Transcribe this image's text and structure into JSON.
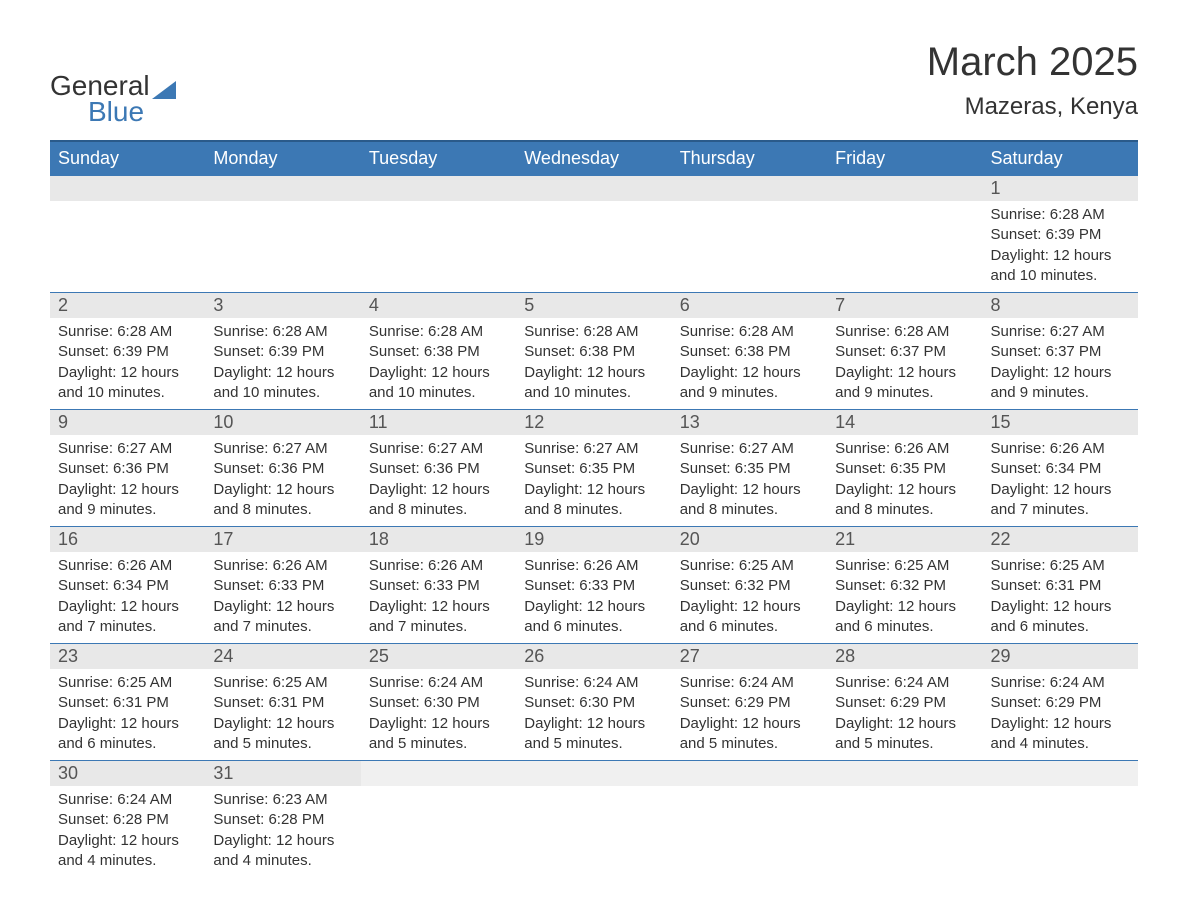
{
  "logo": {
    "text_general": "General",
    "text_blue": "Blue",
    "triangle_color": "#3c78b4"
  },
  "title": "March 2025",
  "location": "Mazeras, Kenya",
  "colors": {
    "header_bg": "#3c78b4",
    "header_border_top": "#2a5a8a",
    "header_text": "#ffffff",
    "daynum_bg": "#e8e8e8",
    "cell_border": "#3c78b4",
    "body_text": "#333333",
    "daynum_text": "#555555",
    "page_bg": "#ffffff"
  },
  "typography": {
    "title_fontsize": 40,
    "location_fontsize": 24,
    "dayheader_fontsize": 18,
    "daynum_fontsize": 18,
    "dayinfo_fontsize": 15,
    "logo_fontsize": 28
  },
  "day_headers": [
    "Sunday",
    "Monday",
    "Tuesday",
    "Wednesday",
    "Thursday",
    "Friday",
    "Saturday"
  ],
  "weeks": [
    [
      null,
      null,
      null,
      null,
      null,
      null,
      {
        "n": "1",
        "sunrise": "Sunrise: 6:28 AM",
        "sunset": "Sunset: 6:39 PM",
        "daylight": "Daylight: 12 hours and 10 minutes."
      }
    ],
    [
      {
        "n": "2",
        "sunrise": "Sunrise: 6:28 AM",
        "sunset": "Sunset: 6:39 PM",
        "daylight": "Daylight: 12 hours and 10 minutes."
      },
      {
        "n": "3",
        "sunrise": "Sunrise: 6:28 AM",
        "sunset": "Sunset: 6:39 PM",
        "daylight": "Daylight: 12 hours and 10 minutes."
      },
      {
        "n": "4",
        "sunrise": "Sunrise: 6:28 AM",
        "sunset": "Sunset: 6:38 PM",
        "daylight": "Daylight: 12 hours and 10 minutes."
      },
      {
        "n": "5",
        "sunrise": "Sunrise: 6:28 AM",
        "sunset": "Sunset: 6:38 PM",
        "daylight": "Daylight: 12 hours and 10 minutes."
      },
      {
        "n": "6",
        "sunrise": "Sunrise: 6:28 AM",
        "sunset": "Sunset: 6:38 PM",
        "daylight": "Daylight: 12 hours and 9 minutes."
      },
      {
        "n": "7",
        "sunrise": "Sunrise: 6:28 AM",
        "sunset": "Sunset: 6:37 PM",
        "daylight": "Daylight: 12 hours and 9 minutes."
      },
      {
        "n": "8",
        "sunrise": "Sunrise: 6:27 AM",
        "sunset": "Sunset: 6:37 PM",
        "daylight": "Daylight: 12 hours and 9 minutes."
      }
    ],
    [
      {
        "n": "9",
        "sunrise": "Sunrise: 6:27 AM",
        "sunset": "Sunset: 6:36 PM",
        "daylight": "Daylight: 12 hours and 9 minutes."
      },
      {
        "n": "10",
        "sunrise": "Sunrise: 6:27 AM",
        "sunset": "Sunset: 6:36 PM",
        "daylight": "Daylight: 12 hours and 8 minutes."
      },
      {
        "n": "11",
        "sunrise": "Sunrise: 6:27 AM",
        "sunset": "Sunset: 6:36 PM",
        "daylight": "Daylight: 12 hours and 8 minutes."
      },
      {
        "n": "12",
        "sunrise": "Sunrise: 6:27 AM",
        "sunset": "Sunset: 6:35 PM",
        "daylight": "Daylight: 12 hours and 8 minutes."
      },
      {
        "n": "13",
        "sunrise": "Sunrise: 6:27 AM",
        "sunset": "Sunset: 6:35 PM",
        "daylight": "Daylight: 12 hours and 8 minutes."
      },
      {
        "n": "14",
        "sunrise": "Sunrise: 6:26 AM",
        "sunset": "Sunset: 6:35 PM",
        "daylight": "Daylight: 12 hours and 8 minutes."
      },
      {
        "n": "15",
        "sunrise": "Sunrise: 6:26 AM",
        "sunset": "Sunset: 6:34 PM",
        "daylight": "Daylight: 12 hours and 7 minutes."
      }
    ],
    [
      {
        "n": "16",
        "sunrise": "Sunrise: 6:26 AM",
        "sunset": "Sunset: 6:34 PM",
        "daylight": "Daylight: 12 hours and 7 minutes."
      },
      {
        "n": "17",
        "sunrise": "Sunrise: 6:26 AM",
        "sunset": "Sunset: 6:33 PM",
        "daylight": "Daylight: 12 hours and 7 minutes."
      },
      {
        "n": "18",
        "sunrise": "Sunrise: 6:26 AM",
        "sunset": "Sunset: 6:33 PM",
        "daylight": "Daylight: 12 hours and 7 minutes."
      },
      {
        "n": "19",
        "sunrise": "Sunrise: 6:26 AM",
        "sunset": "Sunset: 6:33 PM",
        "daylight": "Daylight: 12 hours and 6 minutes."
      },
      {
        "n": "20",
        "sunrise": "Sunrise: 6:25 AM",
        "sunset": "Sunset: 6:32 PM",
        "daylight": "Daylight: 12 hours and 6 minutes."
      },
      {
        "n": "21",
        "sunrise": "Sunrise: 6:25 AM",
        "sunset": "Sunset: 6:32 PM",
        "daylight": "Daylight: 12 hours and 6 minutes."
      },
      {
        "n": "22",
        "sunrise": "Sunrise: 6:25 AM",
        "sunset": "Sunset: 6:31 PM",
        "daylight": "Daylight: 12 hours and 6 minutes."
      }
    ],
    [
      {
        "n": "23",
        "sunrise": "Sunrise: 6:25 AM",
        "sunset": "Sunset: 6:31 PM",
        "daylight": "Daylight: 12 hours and 6 minutes."
      },
      {
        "n": "24",
        "sunrise": "Sunrise: 6:25 AM",
        "sunset": "Sunset: 6:31 PM",
        "daylight": "Daylight: 12 hours and 5 minutes."
      },
      {
        "n": "25",
        "sunrise": "Sunrise: 6:24 AM",
        "sunset": "Sunset: 6:30 PM",
        "daylight": "Daylight: 12 hours and 5 minutes."
      },
      {
        "n": "26",
        "sunrise": "Sunrise: 6:24 AM",
        "sunset": "Sunset: 6:30 PM",
        "daylight": "Daylight: 12 hours and 5 minutes."
      },
      {
        "n": "27",
        "sunrise": "Sunrise: 6:24 AM",
        "sunset": "Sunset: 6:29 PM",
        "daylight": "Daylight: 12 hours and 5 minutes."
      },
      {
        "n": "28",
        "sunrise": "Sunrise: 6:24 AM",
        "sunset": "Sunset: 6:29 PM",
        "daylight": "Daylight: 12 hours and 5 minutes."
      },
      {
        "n": "29",
        "sunrise": "Sunrise: 6:24 AM",
        "sunset": "Sunset: 6:29 PM",
        "daylight": "Daylight: 12 hours and 4 minutes."
      }
    ],
    [
      {
        "n": "30",
        "sunrise": "Sunrise: 6:24 AM",
        "sunset": "Sunset: 6:28 PM",
        "daylight": "Daylight: 12 hours and 4 minutes."
      },
      {
        "n": "31",
        "sunrise": "Sunrise: 6:23 AM",
        "sunset": "Sunset: 6:28 PM",
        "daylight": "Daylight: 12 hours and 4 minutes."
      },
      null,
      null,
      null,
      null,
      null
    ]
  ]
}
